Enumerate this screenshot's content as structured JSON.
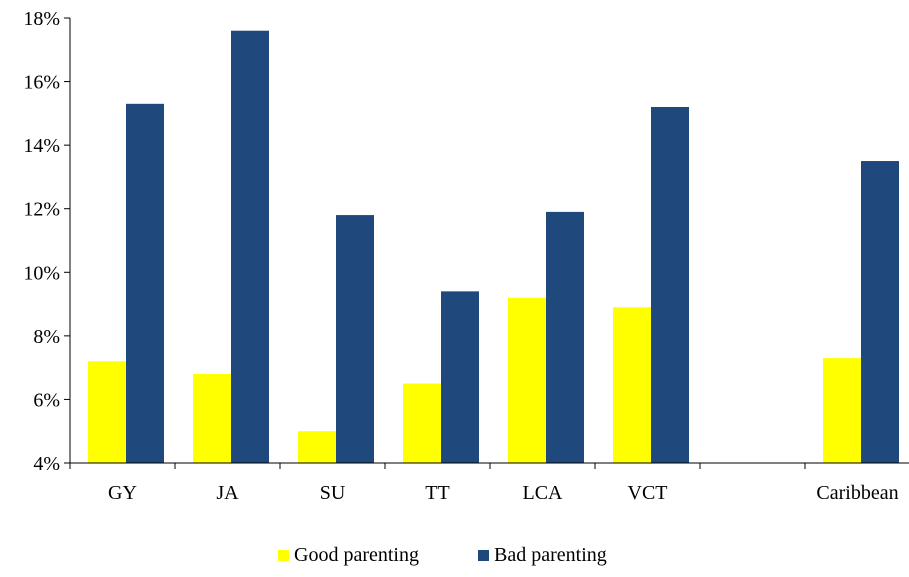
{
  "chart_data": {
    "type": "bar",
    "title": "",
    "xlabel": "",
    "ylabel": "",
    "categories": [
      "GY",
      "JA",
      "SU",
      "TT",
      "LCA",
      "VCT",
      "",
      "Caribbean"
    ],
    "series": [
      {
        "name": "Good parenting",
        "color": "#ffff00",
        "values": [
          7.2,
          6.8,
          5.0,
          6.5,
          9.2,
          8.9,
          null,
          7.3
        ]
      },
      {
        "name": "Bad parenting",
        "color": "#1f497d",
        "values": [
          15.3,
          17.6,
          11.8,
          9.4,
          11.9,
          15.2,
          null,
          13.5
        ]
      }
    ],
    "ylim": [
      4,
      18
    ],
    "ytick_labels": [
      "4%",
      "6%",
      "8%",
      "10%",
      "12%",
      "14%",
      "16%",
      "18%"
    ],
    "grid": false,
    "legend_position": "bottom"
  }
}
